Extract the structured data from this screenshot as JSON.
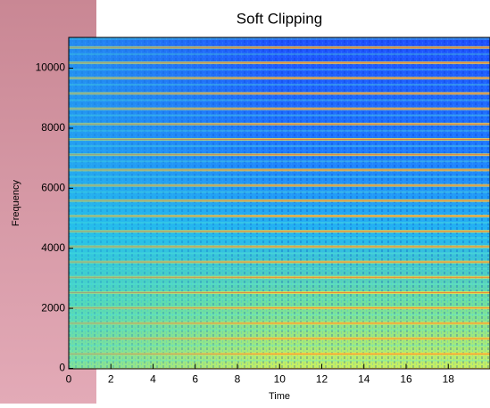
{
  "chart_data": {
    "type": "spectrogram",
    "title": "Soft Clipping",
    "xlabel": "Time",
    "ylabel": "Frequency",
    "xlim": [
      0,
      20
    ],
    "xticks": [
      0,
      2,
      4,
      6,
      8,
      10,
      12,
      14,
      16,
      18
    ],
    "ylim": [
      0,
      11025
    ],
    "yticks": [
      0,
      2000,
      4000,
      6000,
      8000,
      10000
    ],
    "colormap": "jet"
  }
}
